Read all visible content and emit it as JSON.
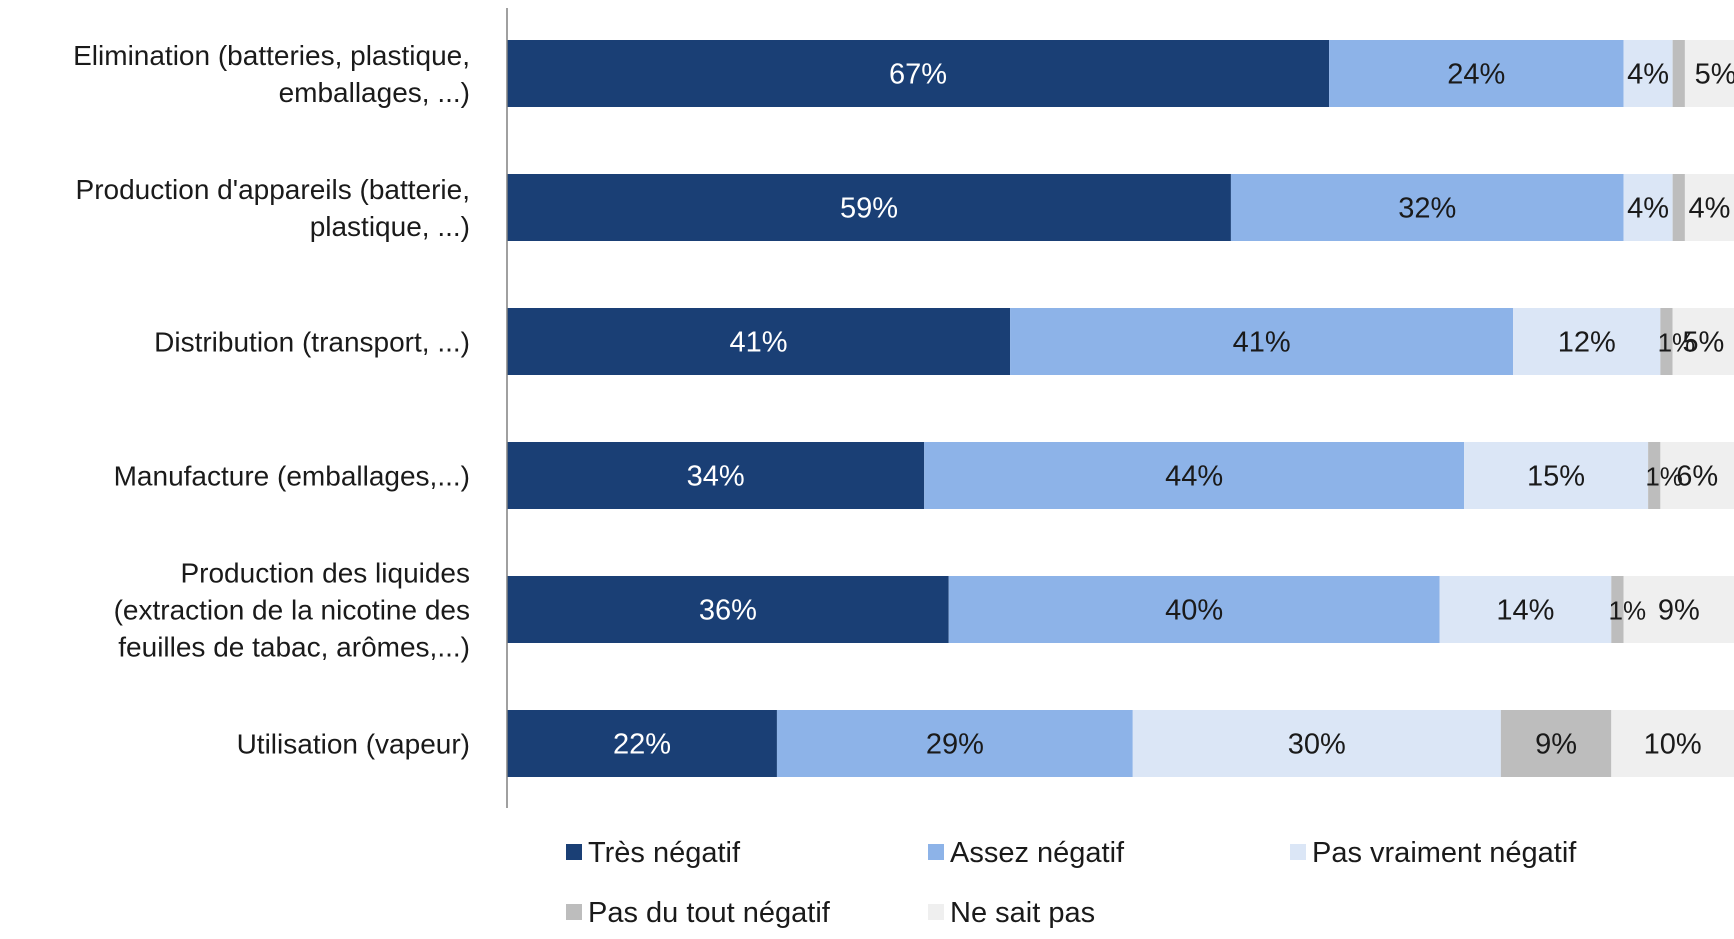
{
  "chart_data": {
    "type": "bar",
    "orientation": "horizontal",
    "stacked": true,
    "categories": [
      [
        "Elimination (batteries, plastique,",
        "emballages, ...)"
      ],
      [
        "Production d'appareils (batterie,",
        "plastique, ...)"
      ],
      [
        "Distribution (transport, ...)"
      ],
      [
        "Manufacture (emballages,...)"
      ],
      [
        "Production des liquides",
        "(extraction de la nicotine des",
        "feuilles de tabac, arômes,...)"
      ],
      [
        "Utilisation (vapeur)"
      ]
    ],
    "series": [
      {
        "name": "Très négatif",
        "color": "#1a3f75",
        "text_color": "#ffffff",
        "values": [
          67,
          59,
          41,
          34,
          36,
          22
        ]
      },
      {
        "name": "Assez négatif",
        "color": "#8db3e8",
        "text_color": "#1a1a1a",
        "values": [
          24,
          32,
          41,
          44,
          40,
          29
        ]
      },
      {
        "name": "Pas vraiment négatif",
        "color": "#dbe6f6",
        "text_color": "#1a1a1a",
        "values": [
          4,
          4,
          12,
          15,
          14,
          30
        ]
      },
      {
        "name": "Pas du tout négatif",
        "color": "#bdbdbd",
        "text_color": "#1a1a1a",
        "values": [
          1,
          1,
          1,
          1,
          1,
          9
        ]
      },
      {
        "name": "Ne sait pas",
        "color": "#efefef",
        "text_color": "#1a1a1a",
        "values": [
          5,
          4,
          5,
          6,
          9,
          10
        ]
      }
    ],
    "data_labels": [
      [
        "67%",
        "24%",
        "4%",
        "",
        "5%"
      ],
      [
        "59%",
        "32%",
        "4%",
        "",
        "4%"
      ],
      [
        "41%",
        "41%",
        "12%",
        "1%",
        "5%"
      ],
      [
        "34%",
        "44%",
        "15%",
        "1%",
        "6%"
      ],
      [
        "36%",
        "40%",
        "14%",
        "1%",
        "9%"
      ],
      [
        "22%",
        "29%",
        "30%",
        "9%",
        "10%"
      ]
    ],
    "legend_position": "bottom",
    "grid": false
  }
}
